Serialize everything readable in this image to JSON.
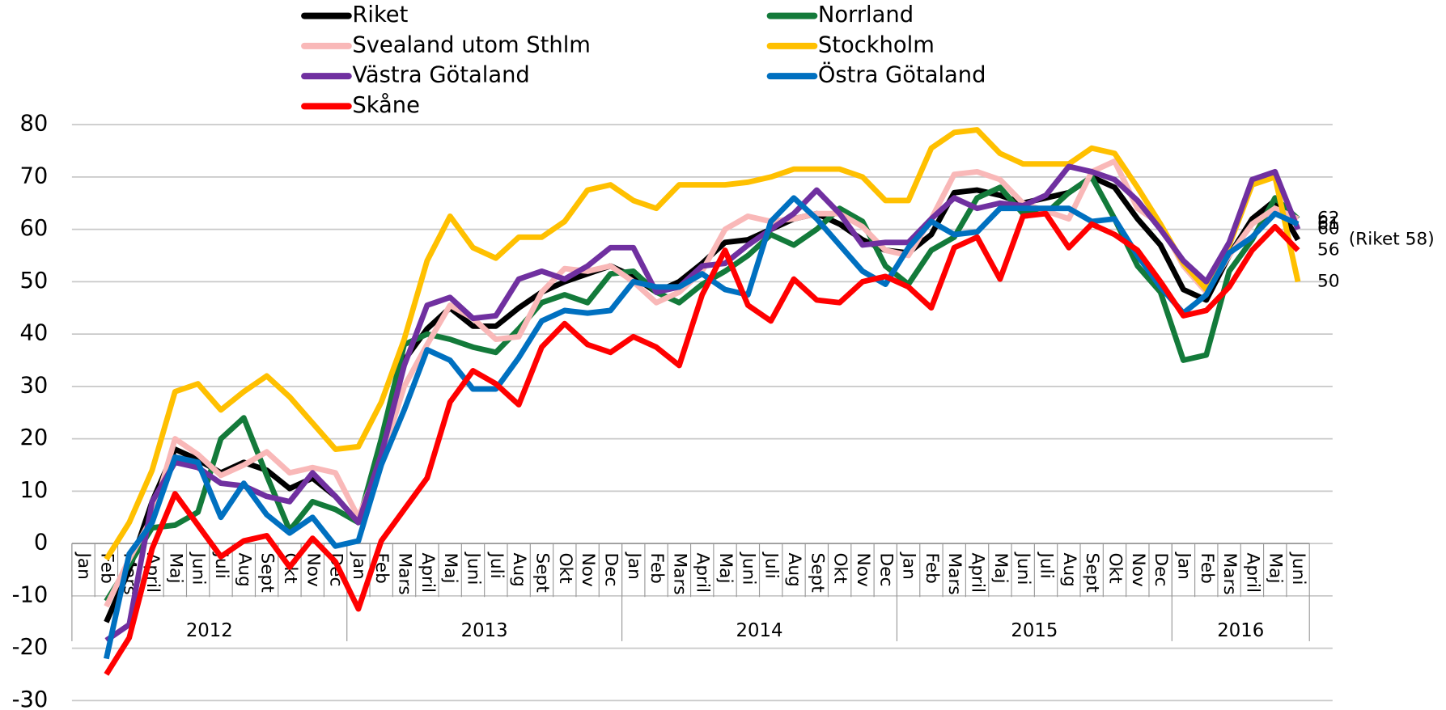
{
  "chart_data": {
    "type": "line",
    "categories": [
      "Jan",
      "Feb",
      "Mars",
      "April",
      "Maj",
      "Juni",
      "Juli",
      "Aug",
      "Sept",
      "Okt",
      "Nov",
      "Dec",
      "Jan",
      "Feb",
      "Mars",
      "April",
      "Maj",
      "Juni",
      "Juli",
      "Aug",
      "Sept",
      "Okt",
      "Nov",
      "Dec",
      "Jan",
      "Feb",
      "Mars",
      "April",
      "Maj",
      "Juni",
      "Juli",
      "Aug",
      "Sept",
      "Okt",
      "Nov",
      "Dec",
      "Jan",
      "Feb",
      "Mars",
      "April",
      "Maj",
      "Juni",
      "Juli",
      "Aug",
      "Sept",
      "Okt",
      "Nov",
      "Dec",
      "Jan",
      "Feb",
      "Mars",
      "April",
      "Maj",
      "Juni"
    ],
    "years": [
      "2012",
      null,
      null,
      null,
      null,
      null,
      null,
      null,
      null,
      null,
      null,
      null,
      "2013",
      null,
      null,
      null,
      null,
      null,
      null,
      null,
      null,
      null,
      null,
      null,
      "2014",
      null,
      null,
      null,
      null,
      null,
      null,
      null,
      null,
      null,
      null,
      null,
      "2015",
      null,
      null,
      null,
      null,
      null,
      null,
      null,
      null,
      null,
      null,
      null,
      "2016",
      null,
      null,
      null,
      null,
      null
    ],
    "ylim": [
      -30,
      80
    ],
    "yticks": [
      -30,
      -20,
      -10,
      0,
      10,
      20,
      30,
      40,
      50,
      60,
      70,
      80
    ],
    "grid": true,
    "series": [
      {
        "name": "Riket",
        "color": "#000000",
        "values": [
          null,
          -15,
          -5,
          8,
          18,
          16,
          13.5,
          15.5,
          14,
          10.5,
          12.5,
          9,
          4,
          18,
          35,
          41,
          45,
          41.5,
          41.5,
          45,
          48,
          50,
          51.5,
          53,
          51,
          48,
          50,
          53.5,
          57.5,
          58,
          60,
          62,
          63,
          61,
          58,
          56,
          55.5,
          59,
          67,
          67.5,
          66.5,
          65,
          66,
          67,
          70,
          68,
          62,
          57,
          48.5,
          46.5,
          55,
          62,
          65.5,
          58
        ],
        "value_labels": [
          null,
          null,
          null,
          null,
          null,
          null,
          null,
          null,
          null,
          null,
          null,
          null,
          null,
          null,
          null,
          null,
          null,
          null,
          null,
          null,
          null,
          null,
          null,
          null,
          null,
          null,
          null,
          null,
          null,
          null,
          null,
          null,
          null,
          null,
          null,
          null,
          null,
          null,
          null,
          null,
          null,
          null,
          null,
          null,
          null,
          null,
          null,
          null,
          null,
          null,
          null,
          null,
          null,
          "(Riket 58)"
        ]
      },
      {
        "name": "Norrland",
        "color": "#137a3a",
        "values": [
          null,
          -11,
          -4,
          3,
          3.5,
          6,
          20,
          24,
          13,
          2.5,
          8,
          6.5,
          4,
          20,
          38,
          40,
          39,
          37.5,
          36.5,
          41,
          46,
          47.5,
          46,
          51.5,
          52,
          48,
          46,
          49.5,
          52,
          55,
          59,
          57,
          60,
          64,
          61.5,
          53,
          49.5,
          56,
          58.5,
          66,
          68,
          63,
          63,
          67,
          70,
          62,
          53,
          48,
          35,
          36,
          52,
          58,
          66,
          62
        ]
      },
      {
        "name": "Svealand utom Sthlm",
        "color": "#f9b8b8",
        "values": [
          null,
          -12,
          -3,
          5,
          20,
          17,
          13,
          15,
          17.5,
          13.5,
          14.5,
          13.5,
          5,
          16,
          30,
          38,
          45.5,
          43,
          39,
          39.5,
          48,
          52.5,
          52,
          53,
          50,
          46,
          48,
          52,
          60,
          62.5,
          61.5,
          62,
          63,
          63,
          60.5,
          56,
          55,
          62,
          70.5,
          71,
          69.5,
          65,
          63.5,
          62,
          71,
          73,
          64,
          61,
          53,
          48,
          55,
          61,
          64,
          62
        ],
        "value_labels": [
          null,
          null,
          null,
          null,
          null,
          null,
          null,
          null,
          null,
          null,
          null,
          null,
          null,
          null,
          null,
          null,
          null,
          null,
          null,
          null,
          null,
          null,
          null,
          null,
          null,
          null,
          null,
          null,
          null,
          null,
          null,
          null,
          null,
          null,
          null,
          null,
          null,
          null,
          null,
          null,
          null,
          null,
          null,
          null,
          null,
          null,
          null,
          null,
          null,
          null,
          null,
          null,
          null,
          "62"
        ]
      },
      {
        "name": "Stockholm",
        "color": "#ffc000",
        "values": [
          null,
          -3,
          4,
          14,
          29,
          30.5,
          25.5,
          29,
          32,
          28,
          23,
          18,
          18.5,
          27,
          39,
          54,
          62.5,
          56.5,
          54.5,
          58.5,
          58.5,
          61.5,
          67.5,
          68.5,
          65.5,
          64,
          68.5,
          68.5,
          68.5,
          69,
          70,
          71.5,
          71.5,
          71.5,
          70,
          65.5,
          65.5,
          75.5,
          78.5,
          79,
          74.5,
          72.5,
          72.5,
          72.5,
          75.5,
          74.5,
          68,
          61,
          53.5,
          48.5,
          57,
          68.5,
          70,
          50
        ],
        "value_labels": [
          null,
          null,
          null,
          null,
          null,
          null,
          null,
          null,
          null,
          null,
          null,
          null,
          null,
          null,
          null,
          null,
          null,
          null,
          null,
          null,
          null,
          null,
          null,
          null,
          null,
          null,
          null,
          null,
          null,
          null,
          null,
          null,
          null,
          null,
          null,
          null,
          null,
          null,
          null,
          null,
          null,
          null,
          null,
          null,
          null,
          null,
          null,
          null,
          null,
          null,
          null,
          null,
          null,
          "50"
        ]
      },
      {
        "name": "Västra Götaland",
        "color": "#7030a0",
        "values": [
          null,
          -18.5,
          -15.5,
          8,
          15.5,
          14.5,
          11.5,
          11,
          9,
          8,
          13.5,
          9,
          4,
          17,
          34,
          45.5,
          47,
          43,
          43.5,
          50.5,
          52,
          50.5,
          53,
          56.5,
          56.5,
          48,
          49,
          53,
          53.5,
          57,
          60,
          63,
          67.5,
          63,
          57,
          57.5,
          57.5,
          62,
          66,
          64,
          65,
          64.5,
          66.5,
          72,
          71,
          69.5,
          65.5,
          60,
          54,
          50,
          57.5,
          69.5,
          71,
          60
        ],
        "value_labels": [
          null,
          null,
          null,
          null,
          null,
          null,
          null,
          null,
          null,
          null,
          null,
          null,
          null,
          null,
          null,
          null,
          null,
          null,
          null,
          null,
          null,
          null,
          null,
          null,
          null,
          null,
          null,
          null,
          null,
          null,
          null,
          null,
          null,
          null,
          null,
          null,
          null,
          null,
          null,
          null,
          null,
          null,
          null,
          null,
          null,
          null,
          null,
          null,
          null,
          null,
          null,
          null,
          null,
          "60"
        ]
      },
      {
        "name": "Östra Götaland",
        "color": "#0070c0",
        "values": [
          null,
          -22,
          -2,
          4,
          16.5,
          15.5,
          5,
          11.5,
          5.5,
          2,
          5,
          -0.5,
          0.5,
          15,
          25.5,
          37,
          35,
          29.5,
          29.5,
          35.5,
          42.5,
          44.5,
          44,
          44.5,
          50,
          49,
          49,
          51.5,
          48.5,
          47.5,
          61.5,
          66,
          62,
          57,
          52,
          49.5,
          56.5,
          61.5,
          59,
          59.5,
          64,
          64,
          64,
          64,
          61.5,
          62,
          55,
          49,
          44,
          47.5,
          55.5,
          58.5,
          63,
          61
        ],
        "value_labels": [
          null,
          null,
          null,
          null,
          null,
          null,
          null,
          null,
          null,
          null,
          null,
          null,
          null,
          null,
          null,
          null,
          null,
          null,
          null,
          null,
          null,
          null,
          null,
          null,
          null,
          null,
          null,
          null,
          null,
          null,
          null,
          null,
          null,
          null,
          null,
          null,
          null,
          null,
          null,
          null,
          null,
          null,
          null,
          null,
          null,
          null,
          null,
          null,
          null,
          null,
          null,
          null,
          null,
          "61"
        ]
      },
      {
        "name": "Skåne",
        "color": "#ff0000",
        "values": [
          null,
          -25,
          -18,
          -1,
          9.5,
          3.5,
          -2.5,
          0.5,
          1.5,
          -4.5,
          1,
          -3.5,
          -12.5,
          0.5,
          6.5,
          12.5,
          27,
          33,
          30.5,
          26.5,
          37.5,
          42,
          38,
          36.5,
          39.5,
          37.5,
          34,
          47.5,
          56,
          45.5,
          42.5,
          50.5,
          46.5,
          46,
          50,
          51,
          49,
          45,
          56.5,
          58.5,
          50.5,
          62.5,
          63,
          56.5,
          61,
          59,
          56,
          50,
          43.5,
          44.5,
          49,
          56,
          60.5,
          56
        ],
        "value_labels": [
          null,
          null,
          null,
          null,
          null,
          null,
          null,
          null,
          null,
          null,
          null,
          null,
          null,
          null,
          null,
          null,
          null,
          null,
          null,
          null,
          null,
          null,
          null,
          null,
          null,
          null,
          null,
          null,
          null,
          null,
          null,
          null,
          null,
          null,
          null,
          null,
          null,
          null,
          null,
          null,
          null,
          null,
          null,
          null,
          null,
          null,
          null,
          null,
          null,
          null,
          null,
          null,
          null,
          "56"
        ]
      }
    ]
  }
}
